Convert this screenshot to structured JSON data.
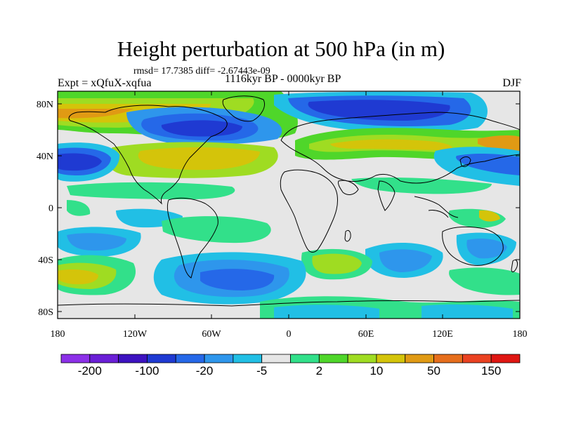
{
  "title": "Height perturbation at 500 hPa (in m)",
  "stats": "rmsd= 17.7385 diff= -2.67443e-09",
  "left_label": "Expt = xQfuX-xqfua",
  "center_label": "1116kyr BP - 0000kyr BP",
  "right_label": "DJF",
  "lat_ticks": [
    "80N",
    "40N",
    "0",
    "40S",
    "80S"
  ],
  "lon_ticks": [
    "180",
    "120W",
    "60W",
    "0",
    "60E",
    "120E",
    "180"
  ],
  "colorbar": {
    "colors": [
      "#8c30e8",
      "#6a1fd6",
      "#3d12c0",
      "#1f3ad2",
      "#2568e8",
      "#2e96ec",
      "#21bfe5",
      "#e6e6e6",
      "#32e08a",
      "#4fd62a",
      "#9fdc22",
      "#d4c40a",
      "#e09a14",
      "#e66e1c",
      "#ea4221",
      "#df1612"
    ],
    "labels": [
      "-200",
      "-100",
      "-20",
      "-5",
      "2",
      "10",
      "50",
      "150"
    ]
  }
}
